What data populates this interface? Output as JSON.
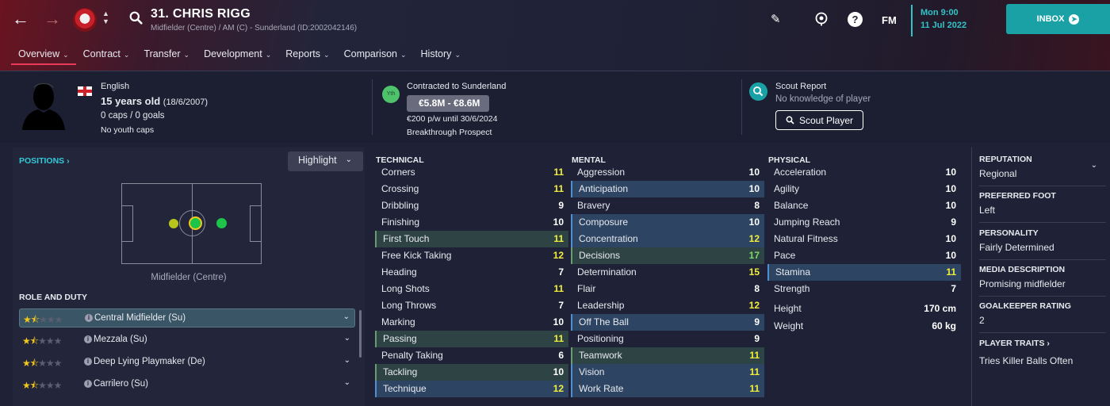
{
  "header": {
    "back_icon": "arrow-left-icon",
    "forward_icon": "arrow-right-icon",
    "player_title": "31. CHRIS RIGG",
    "player_subtitle": "Midfielder (Centre) / AM (C) - Sunderland (ID:2002042146)",
    "date_time": "Mon 9:00",
    "date_day": "11 Jul 2022",
    "fm_logo": "FM",
    "inbox_label": "INBOX",
    "accent_color": "#1aa1a6"
  },
  "tabs": [
    {
      "label": "Overview",
      "active": true
    },
    {
      "label": "Contract"
    },
    {
      "label": "Transfer"
    },
    {
      "label": "Development"
    },
    {
      "label": "Reports"
    },
    {
      "label": "Comparison"
    },
    {
      "label": "History"
    }
  ],
  "info": {
    "nationality": "English",
    "age": "15 years old",
    "dob": "(18/6/2007)",
    "caps": "0 caps / 0 goals",
    "youth_caps": "No youth caps",
    "yth_badge": "Yth",
    "contracted": "Contracted to Sunderland",
    "value": "€5.8M - €8.6M",
    "wage": "€200 p/w until 30/6/2024",
    "prospect": "Breakthrough Prospect",
    "scout_title": "Scout Report",
    "scout_knowledge": "No knowledge of player",
    "scout_button": "Scout Player"
  },
  "positions": {
    "link": "POSITIONS",
    "highlight": "Highlight",
    "position_label": "Midfielder (Centre)"
  },
  "roles": {
    "heading": "ROLE AND DUTY",
    "items": [
      {
        "name": "Central Midfielder (Su)",
        "stars": 1.5
      },
      {
        "name": "Mezzala (Su)",
        "stars": 1.5
      },
      {
        "name": "Deep Lying Playmaker (De)",
        "stars": 1.5
      },
      {
        "name": "Carrilero (Su)",
        "stars": 1.5
      }
    ]
  },
  "technical": {
    "heading": "TECHNICAL",
    "attrs": [
      {
        "name": "Corners",
        "value": "11",
        "hl": ""
      },
      {
        "name": "Crossing",
        "value": "11",
        "hl": ""
      },
      {
        "name": "Dribbling",
        "value": "9",
        "hl": ""
      },
      {
        "name": "Finishing",
        "value": "10",
        "hl": ""
      },
      {
        "name": "First Touch",
        "value": "11",
        "hl": "green"
      },
      {
        "name": "Free Kick Taking",
        "value": "12",
        "hl": ""
      },
      {
        "name": "Heading",
        "value": "7",
        "hl": ""
      },
      {
        "name": "Long Shots",
        "value": "11",
        "hl": ""
      },
      {
        "name": "Long Throws",
        "value": "7",
        "hl": ""
      },
      {
        "name": "Marking",
        "value": "10",
        "hl": ""
      },
      {
        "name": "Passing",
        "value": "11",
        "hl": "green"
      },
      {
        "name": "Penalty Taking",
        "value": "6",
        "hl": ""
      },
      {
        "name": "Tackling",
        "value": "10",
        "hl": "green"
      },
      {
        "name": "Technique",
        "value": "12",
        "hl": "blue"
      }
    ]
  },
  "mental": {
    "heading": "MENTAL",
    "attrs": [
      {
        "name": "Aggression",
        "value": "10",
        "hl": ""
      },
      {
        "name": "Anticipation",
        "value": "10",
        "hl": "blue"
      },
      {
        "name": "Bravery",
        "value": "8",
        "hl": ""
      },
      {
        "name": "Composure",
        "value": "10",
        "hl": "blue"
      },
      {
        "name": "Concentration",
        "value": "12",
        "hl": "blue"
      },
      {
        "name": "Decisions",
        "value": "17",
        "hl": "green"
      },
      {
        "name": "Determination",
        "value": "15",
        "hl": ""
      },
      {
        "name": "Flair",
        "value": "8",
        "hl": ""
      },
      {
        "name": "Leadership",
        "value": "12",
        "hl": ""
      },
      {
        "name": "Off The Ball",
        "value": "9",
        "hl": "blue"
      },
      {
        "name": "Positioning",
        "value": "9",
        "hl": ""
      },
      {
        "name": "Teamwork",
        "value": "11",
        "hl": "green"
      },
      {
        "name": "Vision",
        "value": "11",
        "hl": "blue"
      },
      {
        "name": "Work Rate",
        "value": "11",
        "hl": "blue"
      }
    ]
  },
  "physical": {
    "heading": "PHYSICAL",
    "attrs": [
      {
        "name": "Acceleration",
        "value": "10",
        "hl": ""
      },
      {
        "name": "Agility",
        "value": "10",
        "hl": ""
      },
      {
        "name": "Balance",
        "value": "10",
        "hl": ""
      },
      {
        "name": "Jumping Reach",
        "value": "9",
        "hl": ""
      },
      {
        "name": "Natural Fitness",
        "value": "10",
        "hl": ""
      },
      {
        "name": "Pace",
        "value": "10",
        "hl": ""
      },
      {
        "name": "Stamina",
        "value": "11",
        "hl": "blue"
      },
      {
        "name": "Strength",
        "value": "7",
        "hl": ""
      }
    ],
    "height_label": "Height",
    "height_value": "170 cm",
    "weight_label": "Weight",
    "weight_value": "60 kg"
  },
  "sidebar": {
    "reputation_head": "REPUTATION",
    "reputation": "Regional",
    "foot_head": "PREFERRED FOOT",
    "foot": "Left",
    "personality_head": "PERSONALITY",
    "personality": "Fairly Determined",
    "media_head": "MEDIA DESCRIPTION",
    "media": "Promising midfielder",
    "gk_head": "GOALKEEPER RATING",
    "gk": "2",
    "traits_head": "PLAYER TRAITS",
    "traits": "Tries Killer Balls Often"
  }
}
